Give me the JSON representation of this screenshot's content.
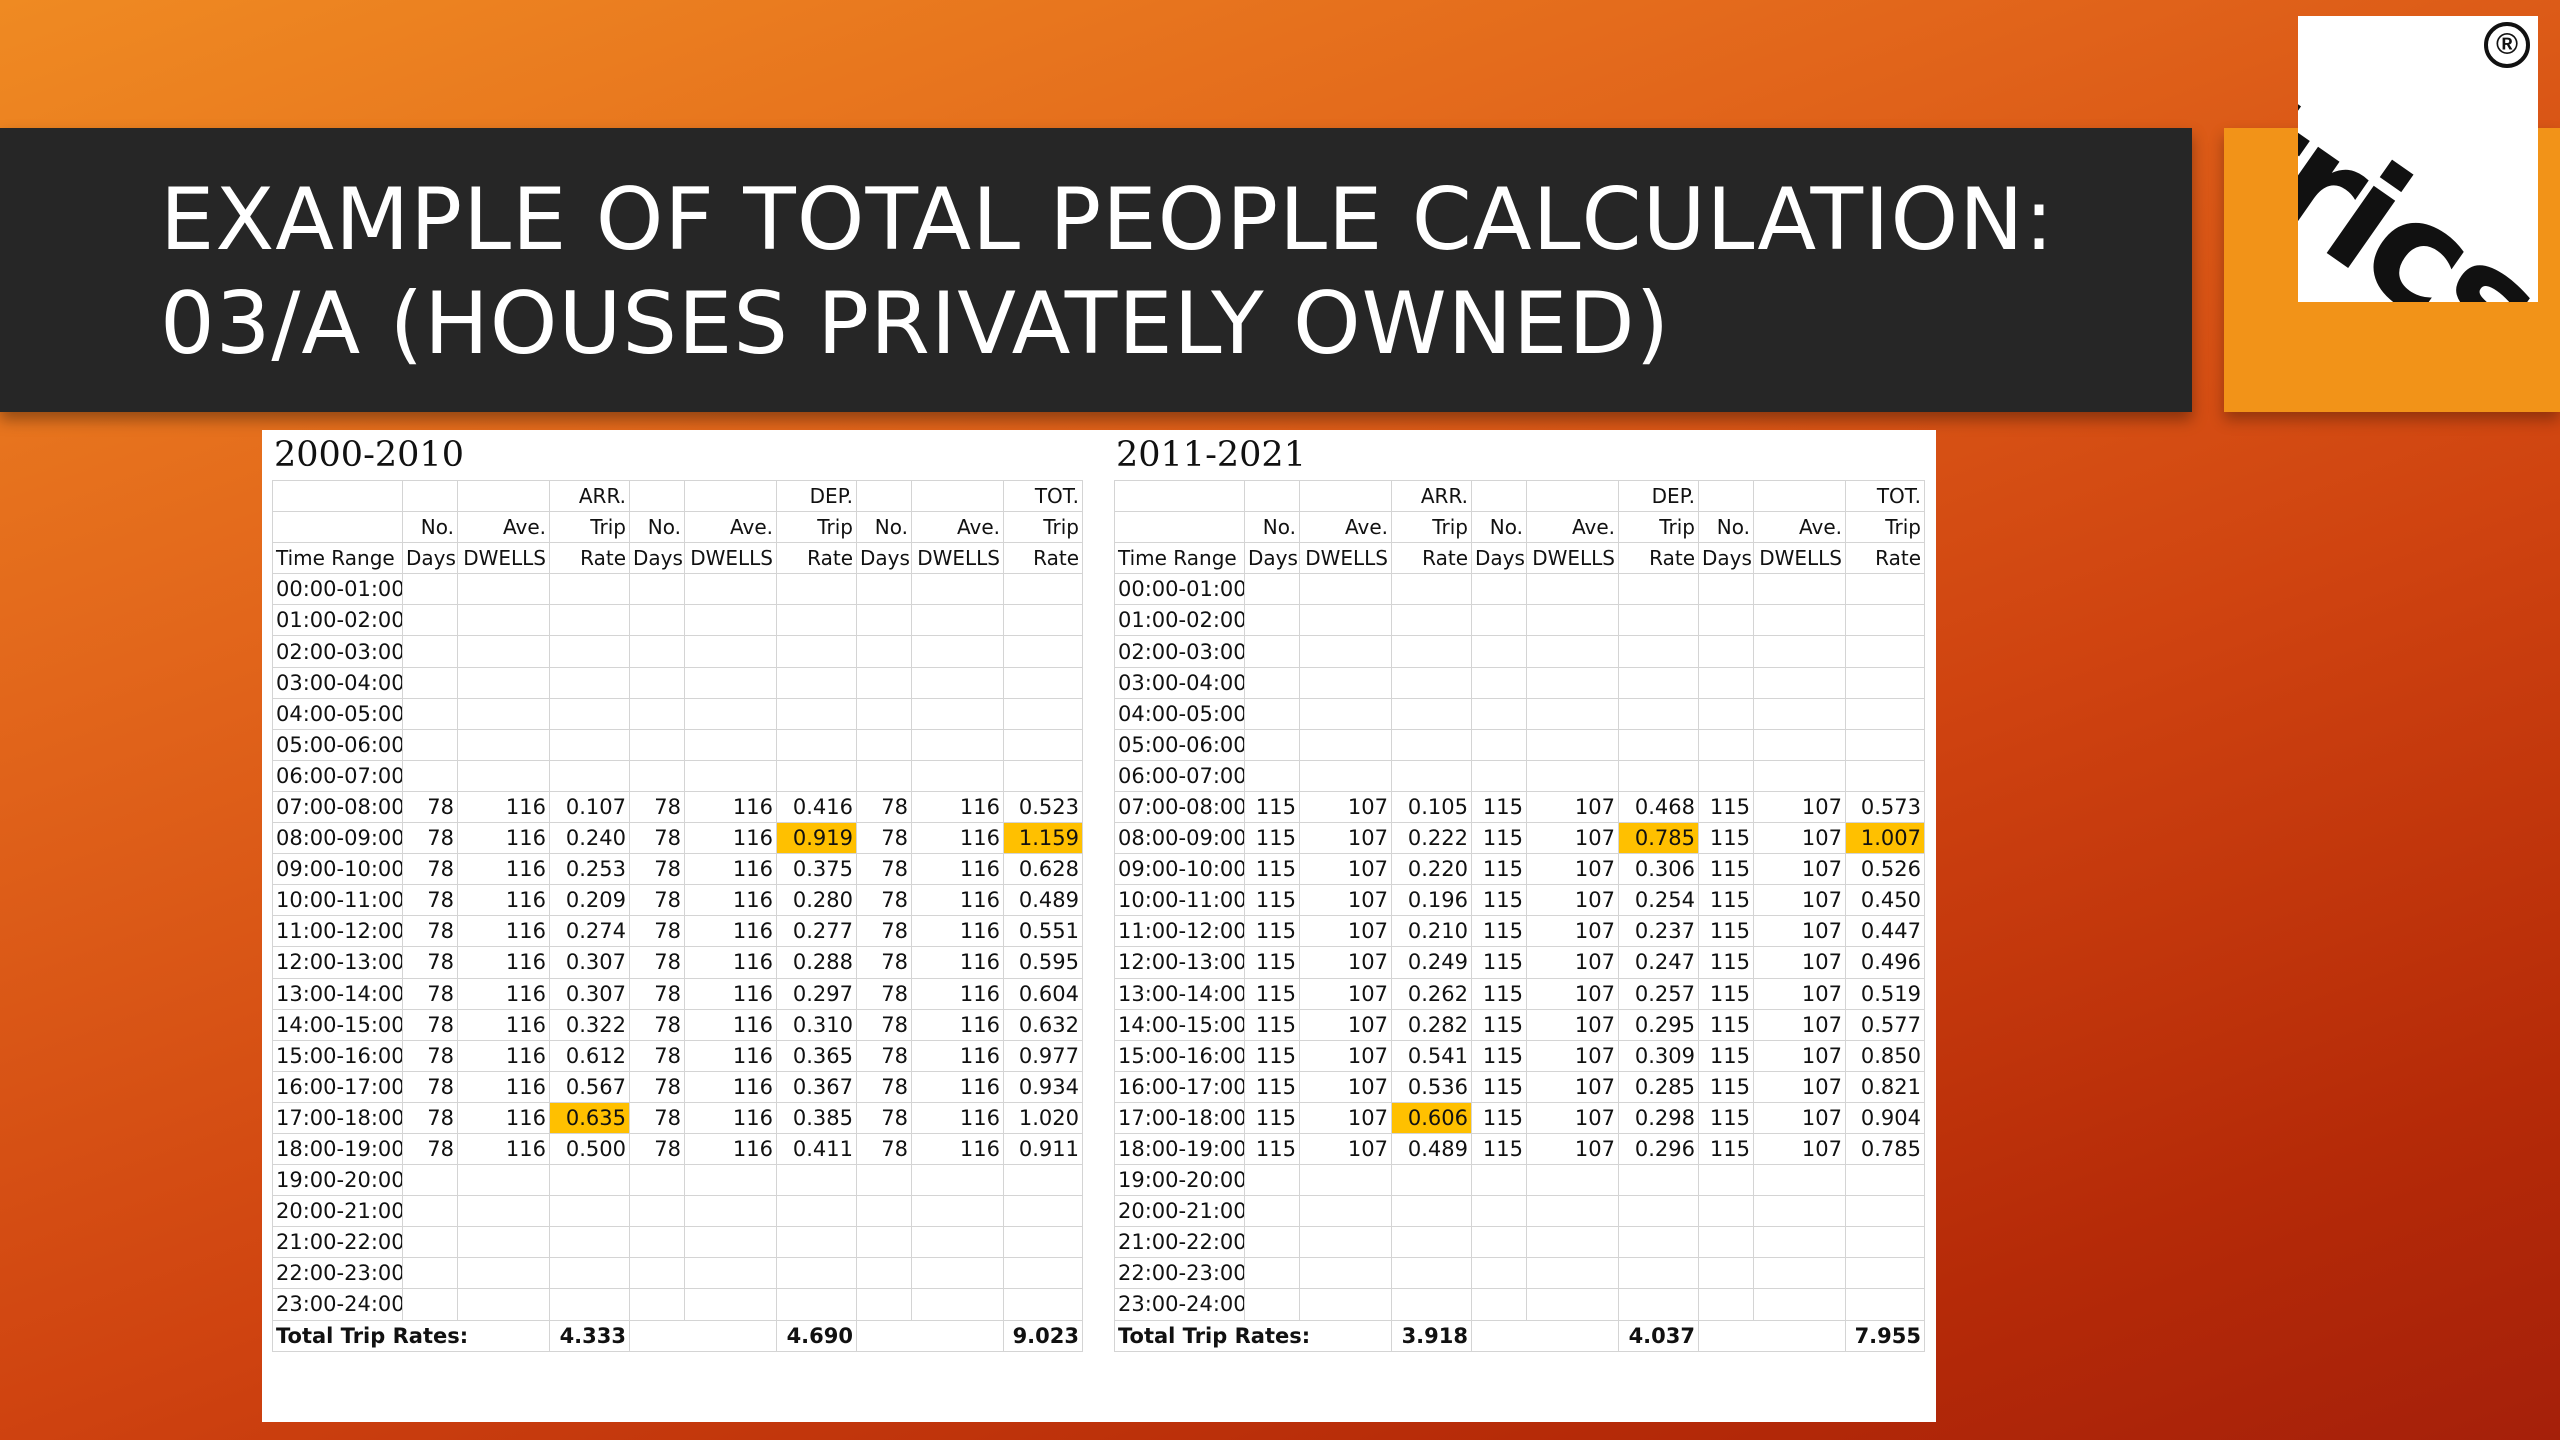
{
  "title": {
    "line1": "EXAMPLE OF TOTAL PEOPLE CALCULATION:",
    "line2": "03/A (HOUSES PRIVATELY OWNED)"
  },
  "logo": {
    "text": "trics",
    "registered": "®"
  },
  "colors": {
    "title_bar": "#262626",
    "accent_orange": "#f29318",
    "highlight": "#ffc000"
  },
  "header_rows": [
    [
      "",
      "",
      "",
      "ARR.",
      "",
      "",
      "DEP.",
      "",
      "",
      "TOT."
    ],
    [
      "",
      "No.",
      "Ave.",
      "Trip",
      "No.",
      "Ave.",
      "Trip",
      "No.",
      "Ave.",
      "Trip"
    ],
    [
      "Time Range",
      "Days",
      "DWELLS",
      "Rate",
      "Days",
      "DWELLS",
      "Rate",
      "Days",
      "DWELLS",
      "Rate"
    ]
  ],
  "tables": [
    {
      "period": "2000-2010",
      "rows": [
        [
          "00:00-01:00",
          "",
          "",
          "",
          "",
          "",
          "",
          "",
          "",
          ""
        ],
        [
          "01:00-02:00",
          "",
          "",
          "",
          "",
          "",
          "",
          "",
          "",
          ""
        ],
        [
          "02:00-03:00",
          "",
          "",
          "",
          "",
          "",
          "",
          "",
          "",
          ""
        ],
        [
          "03:00-04:00",
          "",
          "",
          "",
          "",
          "",
          "",
          "",
          "",
          ""
        ],
        [
          "04:00-05:00",
          "",
          "",
          "",
          "",
          "",
          "",
          "",
          "",
          ""
        ],
        [
          "05:00-06:00",
          "",
          "",
          "",
          "",
          "",
          "",
          "",
          "",
          ""
        ],
        [
          "06:00-07:00",
          "",
          "",
          "",
          "",
          "",
          "",
          "",
          "",
          ""
        ],
        [
          "07:00-08:00",
          "78",
          "116",
          "0.107",
          "78",
          "116",
          "0.416",
          "78",
          "116",
          "0.523"
        ],
        [
          "08:00-09:00",
          "78",
          "116",
          "0.240",
          "78",
          "116",
          "0.919",
          "78",
          "116",
          "1.159"
        ],
        [
          "09:00-10:00",
          "78",
          "116",
          "0.253",
          "78",
          "116",
          "0.375",
          "78",
          "116",
          "0.628"
        ],
        [
          "10:00-11:00",
          "78",
          "116",
          "0.209",
          "78",
          "116",
          "0.280",
          "78",
          "116",
          "0.489"
        ],
        [
          "11:00-12:00",
          "78",
          "116",
          "0.274",
          "78",
          "116",
          "0.277",
          "78",
          "116",
          "0.551"
        ],
        [
          "12:00-13:00",
          "78",
          "116",
          "0.307",
          "78",
          "116",
          "0.288",
          "78",
          "116",
          "0.595"
        ],
        [
          "13:00-14:00",
          "78",
          "116",
          "0.307",
          "78",
          "116",
          "0.297",
          "78",
          "116",
          "0.604"
        ],
        [
          "14:00-15:00",
          "78",
          "116",
          "0.322",
          "78",
          "116",
          "0.310",
          "78",
          "116",
          "0.632"
        ],
        [
          "15:00-16:00",
          "78",
          "116",
          "0.612",
          "78",
          "116",
          "0.365",
          "78",
          "116",
          "0.977"
        ],
        [
          "16:00-17:00",
          "78",
          "116",
          "0.567",
          "78",
          "116",
          "0.367",
          "78",
          "116",
          "0.934"
        ],
        [
          "17:00-18:00",
          "78",
          "116",
          "0.635",
          "78",
          "116",
          "0.385",
          "78",
          "116",
          "1.020"
        ],
        [
          "18:00-19:00",
          "78",
          "116",
          "0.500",
          "78",
          "116",
          "0.411",
          "78",
          "116",
          "0.911"
        ],
        [
          "19:00-20:00",
          "",
          "",
          "",
          "",
          "",
          "",
          "",
          "",
          ""
        ],
        [
          "20:00-21:00",
          "",
          "",
          "",
          "",
          "",
          "",
          "",
          "",
          ""
        ],
        [
          "21:00-22:00",
          "",
          "",
          "",
          "",
          "",
          "",
          "",
          "",
          ""
        ],
        [
          "22:00-23:00",
          "",
          "",
          "",
          "",
          "",
          "",
          "",
          "",
          ""
        ],
        [
          "23:00-24:00",
          "",
          "",
          "",
          "",
          "",
          "",
          "",
          "",
          ""
        ]
      ],
      "highlights": [
        [
          8,
          6
        ],
        [
          8,
          9
        ],
        [
          17,
          3
        ]
      ],
      "totals": {
        "label": "Total Trip Rates:",
        "arr": "4.333",
        "dep": "4.690",
        "tot": "9.023"
      }
    },
    {
      "period": "2011-2021",
      "rows": [
        [
          "00:00-01:00",
          "",
          "",
          "",
          "",
          "",
          "",
          "",
          "",
          ""
        ],
        [
          "01:00-02:00",
          "",
          "",
          "",
          "",
          "",
          "",
          "",
          "",
          ""
        ],
        [
          "02:00-03:00",
          "",
          "",
          "",
          "",
          "",
          "",
          "",
          "",
          ""
        ],
        [
          "03:00-04:00",
          "",
          "",
          "",
          "",
          "",
          "",
          "",
          "",
          ""
        ],
        [
          "04:00-05:00",
          "",
          "",
          "",
          "",
          "",
          "",
          "",
          "",
          ""
        ],
        [
          "05:00-06:00",
          "",
          "",
          "",
          "",
          "",
          "",
          "",
          "",
          ""
        ],
        [
          "06:00-07:00",
          "",
          "",
          "",
          "",
          "",
          "",
          "",
          "",
          ""
        ],
        [
          "07:00-08:00",
          "115",
          "107",
          "0.105",
          "115",
          "107",
          "0.468",
          "115",
          "107",
          "0.573"
        ],
        [
          "08:00-09:00",
          "115",
          "107",
          "0.222",
          "115",
          "107",
          "0.785",
          "115",
          "107",
          "1.007"
        ],
        [
          "09:00-10:00",
          "115",
          "107",
          "0.220",
          "115",
          "107",
          "0.306",
          "115",
          "107",
          "0.526"
        ],
        [
          "10:00-11:00",
          "115",
          "107",
          "0.196",
          "115",
          "107",
          "0.254",
          "115",
          "107",
          "0.450"
        ],
        [
          "11:00-12:00",
          "115",
          "107",
          "0.210",
          "115",
          "107",
          "0.237",
          "115",
          "107",
          "0.447"
        ],
        [
          "12:00-13:00",
          "115",
          "107",
          "0.249",
          "115",
          "107",
          "0.247",
          "115",
          "107",
          "0.496"
        ],
        [
          "13:00-14:00",
          "115",
          "107",
          "0.262",
          "115",
          "107",
          "0.257",
          "115",
          "107",
          "0.519"
        ],
        [
          "14:00-15:00",
          "115",
          "107",
          "0.282",
          "115",
          "107",
          "0.295",
          "115",
          "107",
          "0.577"
        ],
        [
          "15:00-16:00",
          "115",
          "107",
          "0.541",
          "115",
          "107",
          "0.309",
          "115",
          "107",
          "0.850"
        ],
        [
          "16:00-17:00",
          "115",
          "107",
          "0.536",
          "115",
          "107",
          "0.285",
          "115",
          "107",
          "0.821"
        ],
        [
          "17:00-18:00",
          "115",
          "107",
          "0.606",
          "115",
          "107",
          "0.298",
          "115",
          "107",
          "0.904"
        ],
        [
          "18:00-19:00",
          "115",
          "107",
          "0.489",
          "115",
          "107",
          "0.296",
          "115",
          "107",
          "0.785"
        ],
        [
          "19:00-20:00",
          "",
          "",
          "",
          "",
          "",
          "",
          "",
          "",
          ""
        ],
        [
          "20:00-21:00",
          "",
          "",
          "",
          "",
          "",
          "",
          "",
          "",
          ""
        ],
        [
          "21:00-22:00",
          "",
          "",
          "",
          "",
          "",
          "",
          "",
          "",
          ""
        ],
        [
          "22:00-23:00",
          "",
          "",
          "",
          "",
          "",
          "",
          "",
          "",
          ""
        ],
        [
          "23:00-24:00",
          "",
          "",
          "",
          "",
          "",
          "",
          "",
          "",
          ""
        ]
      ],
      "highlights": [
        [
          8,
          6
        ],
        [
          8,
          9
        ],
        [
          17,
          3
        ]
      ],
      "totals": {
        "label": "Total Trip Rates:",
        "arr": "3.918",
        "dep": "4.037",
        "tot": "7.955"
      }
    }
  ]
}
